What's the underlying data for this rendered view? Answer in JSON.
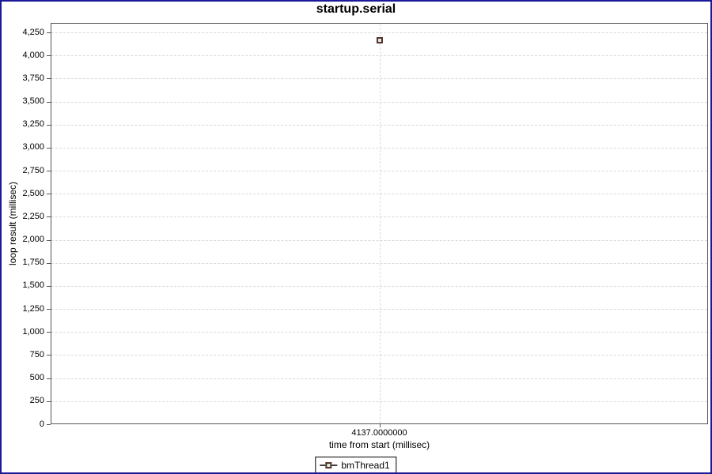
{
  "frame": {
    "border_color": "#1a1a99",
    "background": "#ffffff"
  },
  "colors": {
    "plot_border": "#545454",
    "gridline": "#d9d9d9",
    "tick_mark": "#545454",
    "text": "#000000",
    "marker_fill": "#d9ecdd",
    "marker_outline": "#5a342c",
    "legend_border": "#000000"
  },
  "chart_data": {
    "type": "scatter",
    "title": "startup.serial",
    "xlabel": "time from start (millisec)",
    "ylabel": "loop result (millisec)",
    "xlim": [
      0,
      8274
    ],
    "ylim": [
      0,
      4353
    ],
    "grid": {
      "horizontal": "dashed at every y tick",
      "vertical": "dashed at every x tick",
      "legend_position": "bottom"
    },
    "x_ticks": [
      {
        "value": 4137,
        "label": "4137.0000000"
      }
    ],
    "y_ticks": [
      {
        "value": 0,
        "label": "0"
      },
      {
        "value": 250,
        "label": "250"
      },
      {
        "value": 500,
        "label": "500"
      },
      {
        "value": 750,
        "label": "750"
      },
      {
        "value": 1000,
        "label": "1,000"
      },
      {
        "value": 1250,
        "label": "1,250"
      },
      {
        "value": 1500,
        "label": "1,500"
      },
      {
        "value": 1750,
        "label": "1,750"
      },
      {
        "value": 2000,
        "label": "2,000"
      },
      {
        "value": 2250,
        "label": "2,250"
      },
      {
        "value": 2500,
        "label": "2,500"
      },
      {
        "value": 2750,
        "label": "2,750"
      },
      {
        "value": 3000,
        "label": "3,000"
      },
      {
        "value": 3250,
        "label": "3,250"
      },
      {
        "value": 3500,
        "label": "3,500"
      },
      {
        "value": 3750,
        "label": "3,750"
      },
      {
        "value": 4000,
        "label": "4,000"
      },
      {
        "value": 4250,
        "label": "4,250"
      }
    ],
    "series": [
      {
        "name": "bmThread1",
        "marker": "square",
        "points": [
          {
            "x": 4137.0,
            "y": 4165
          }
        ]
      }
    ],
    "legend": {
      "position": "bottom",
      "entries": [
        "bmThread1"
      ]
    }
  }
}
